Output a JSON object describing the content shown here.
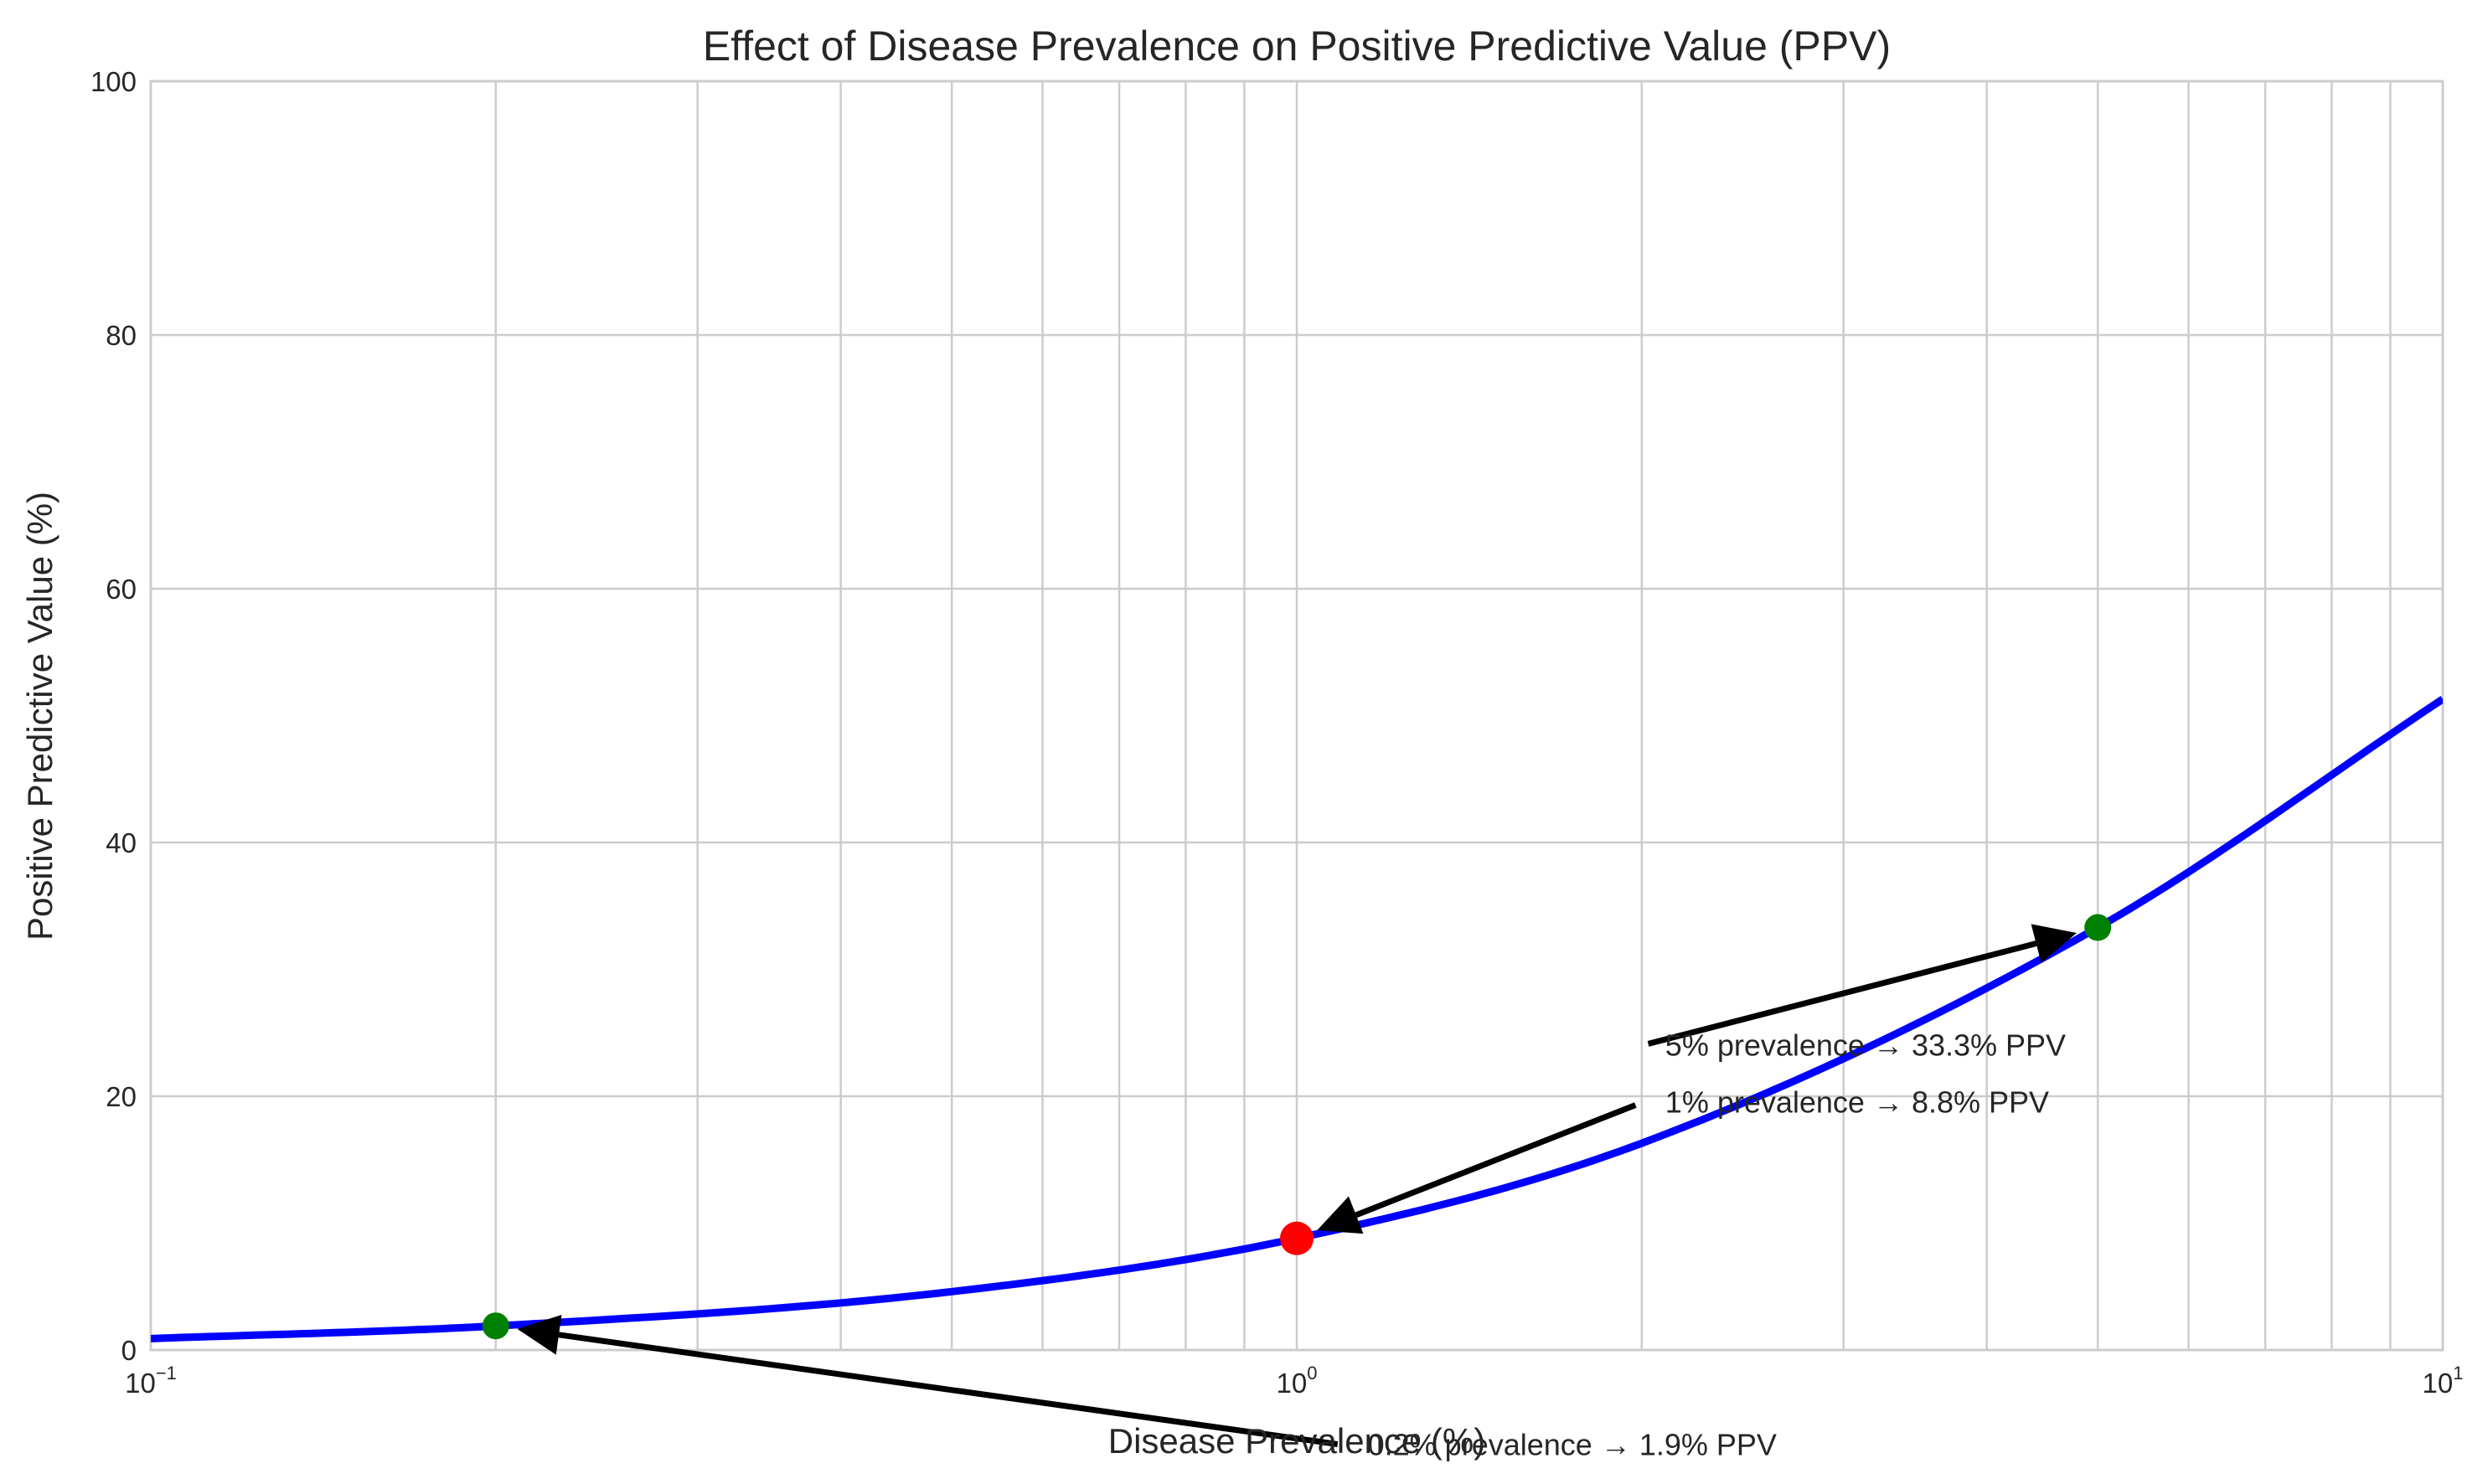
{
  "chart_data": {
    "type": "line",
    "title": "Effect of Disease Prevalence on Positive Predictive Value (PPV)",
    "xlabel": "Disease Prevalence (%)",
    "ylabel": "Positive Predictive Value (%)",
    "x_scale": "log",
    "xlim": [
      0.1,
      10
    ],
    "ylim": [
      0,
      100
    ],
    "grid": true,
    "x_ticks": [
      {
        "base": "10",
        "exp": "−1"
      },
      {
        "base": "10",
        "exp": "0"
      },
      {
        "base": "10",
        "exp": "1"
      }
    ],
    "y_ticks": [
      "0",
      "20",
      "40",
      "60",
      "80",
      "100"
    ],
    "series": [
      {
        "color": "#0000ff",
        "x": [
          0.1,
          0.2,
          0.5,
          1,
          2,
          5,
          10
        ],
        "y": [
          0.9,
          1.9,
          4.6,
          8.8,
          16.3,
          33.3,
          51.3
        ]
      }
    ],
    "highlight_points": [
      {
        "x": 0.2,
        "y": 1.9,
        "color": "#008000"
      },
      {
        "x": 1,
        "y": 8.8,
        "color": "#ff0000"
      },
      {
        "x": 5,
        "y": 33.3,
        "color": "#008000"
      }
    ],
    "annotations": [
      {
        "text": "0.2% prevalence → 1.9% PPV",
        "x": 0.2,
        "y": 1.9,
        "text_x": 1.1,
        "text_y": -7.5
      },
      {
        "text": "1% prevalence → 8.8% PPV",
        "x": 1,
        "y": 8.8,
        "text_x": 2,
        "text_y": 19.5
      },
      {
        "text": "5% prevalence → 33.3% PPV",
        "x": 5,
        "y": 33.3,
        "text_x": 2,
        "text_y": 24
      }
    ]
  }
}
